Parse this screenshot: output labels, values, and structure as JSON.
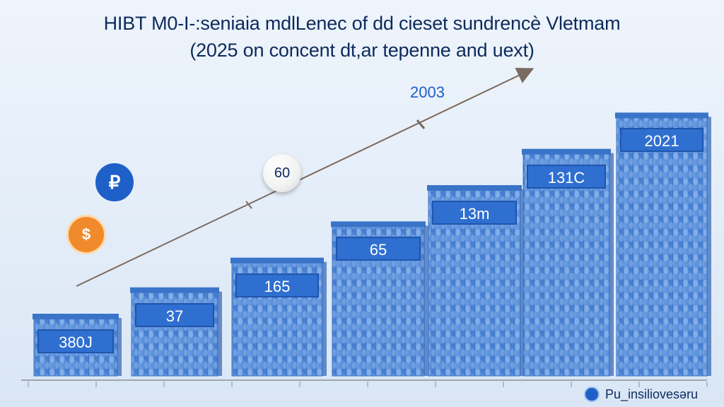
{
  "title": "HIBT M0-I-:seniaia mdlLenec of dd cieset sundrencè Vletmam",
  "subtitle": "(2025 on concent dt,ar tepenne and uext)",
  "coins": {
    "blue_symbol": "₽",
    "orange_symbol": "$",
    "blue_color": "#1f5fc8",
    "orange_color": "#f08a2c"
  },
  "logo_text": "Pu_insiliovesəru",
  "colors": {
    "bar": "#4d86d6",
    "bar_top": "#3a74c8",
    "label_bg": "#2f6fd0",
    "arrow": "#7a6a60"
  },
  "chart_data": {
    "type": "bar",
    "title": "HIBT M0-I-:seniaia mdlLenec of dd cieset sundrencè Vletmam",
    "subtitle": "(2025 on concent dt,ar tepenne and uext)",
    "categories": [
      "",
      "",
      "",
      "",
      "",
      "",
      ""
    ],
    "bar_labels": [
      "380J",
      "37",
      "165",
      "65",
      "13m",
      "131C",
      "2021"
    ],
    "values": [
      18,
      26,
      35,
      46,
      57,
      68,
      79
    ],
    "ylim": [
      0,
      90
    ],
    "trend_line": {
      "points": [
        "60",
        "2003"
      ]
    },
    "grid": false,
    "legend": "none"
  }
}
